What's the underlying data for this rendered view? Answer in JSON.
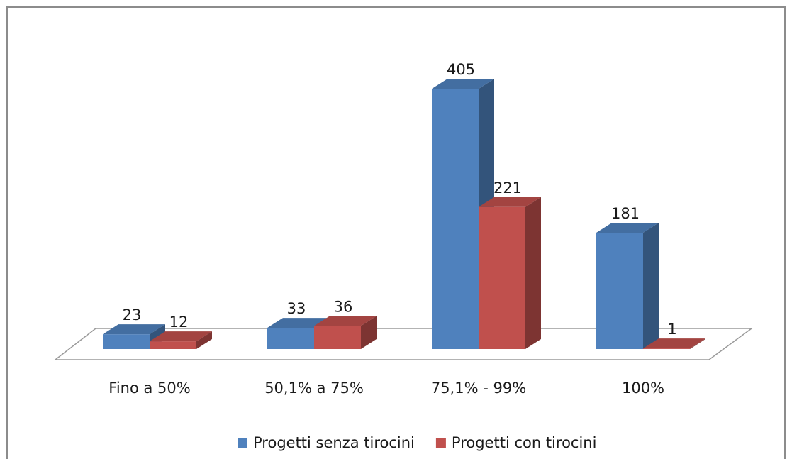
{
  "chart_data": {
    "type": "bar",
    "categories": [
      "Fino a 50%",
      "50,1% a 75%",
      "75,1% - 99%",
      "100%"
    ],
    "series": [
      {
        "name": "Progetti senza tirocini",
        "color": "#4f81bd",
        "values": [
          23,
          33,
          405,
          181
        ]
      },
      {
        "name": "Progetti con tirocini",
        "color": "#c0504d",
        "values": [
          12,
          36,
          221,
          1
        ]
      }
    ]
  }
}
